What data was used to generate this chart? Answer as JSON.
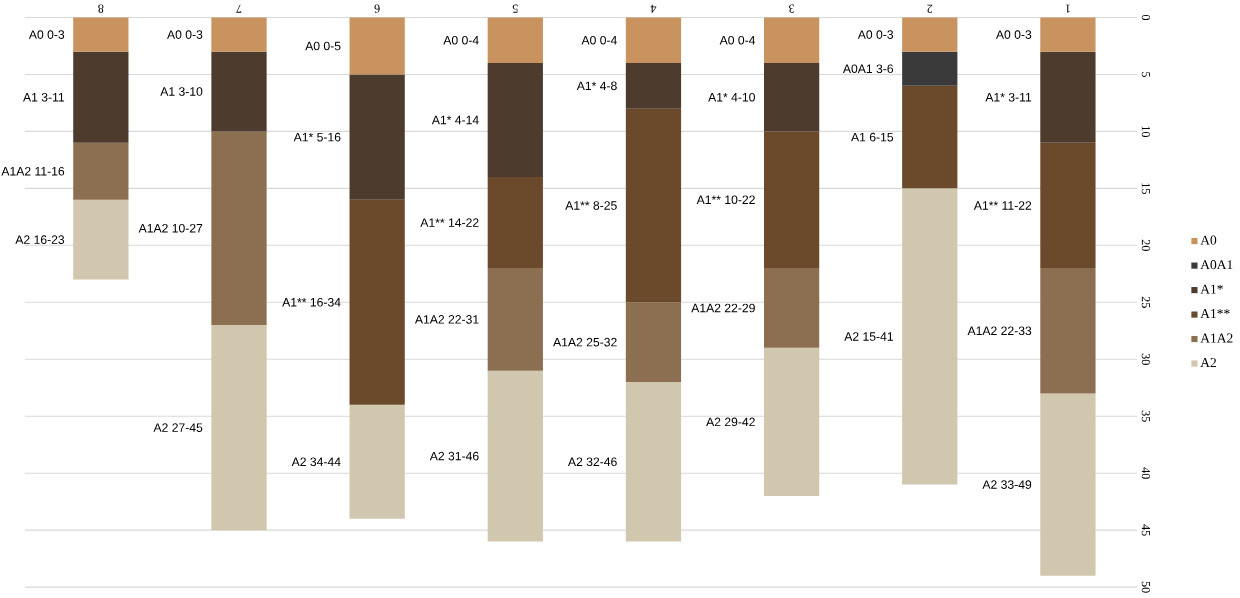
{
  "chart_data": {
    "type": "bar",
    "stacked": true,
    "categories": [
      "8",
      "7",
      "6",
      "5",
      "4",
      "3",
      "2",
      "1"
    ],
    "series": [
      {
        "name": "A0",
        "color": "#c8935e",
        "values": [
          3,
          3,
          5,
          4,
          4,
          4,
          3,
          3
        ]
      },
      {
        "name": "A0A1",
        "color": "#3a3a3a",
        "values": [
          null,
          null,
          null,
          null,
          null,
          null,
          3,
          null
        ]
      },
      {
        "name": "A1*",
        "color": "#4d3b2d",
        "values": [
          8,
          7,
          11,
          10,
          4,
          6,
          null,
          8
        ]
      },
      {
        "name": "A1**",
        "color": "#6b4a2c",
        "values": [
          null,
          null,
          18,
          8,
          17,
          12,
          9,
          11
        ]
      },
      {
        "name": "A1A2",
        "color": "#8c6e50",
        "values": [
          5,
          17,
          null,
          9,
          7,
          7,
          null,
          11
        ]
      },
      {
        "name": "A2",
        "color": "#d1c6ae",
        "values": [
          7,
          18,
          10,
          15,
          14,
          13,
          26,
          16
        ]
      }
    ],
    "ylim": [
      50,
      0
    ],
    "yticks": [
      0,
      5,
      10,
      15,
      20,
      25,
      30,
      35,
      40,
      45,
      50
    ],
    "grid": "y",
    "legend": "right",
    "annotations": [
      "A0 0-3",
      "A1 3-11",
      "A1A2 11-16",
      "A2 16-23",
      "A0 0-3",
      "A1 3-10",
      "A1A2 10-27",
      "A2 27-45",
      "A0  0-5",
      "A1* 5-16",
      "A1** 16-34",
      "A2 34-44",
      "A0 0-4",
      "A1* 4-14",
      "A1**  14-22",
      "A1A2 22-31",
      "A2 31-46",
      "A0 0-4",
      "A1* 4-8",
      "A1** 8-25",
      "A1A2 25-32",
      "A2 32-46",
      "A0 0-4",
      "A1* 4-10",
      "A1** 10-22",
      "A1A2  22-29",
      "A2 29-42",
      "A0 0-3",
      "A0A1 3-6",
      "A1 6-15",
      "A2 15-41",
      "A0 0-3",
      "A1* 3-11",
      "A1** 11-22",
      "A1A2 22-33",
      "A2 33-49"
    ]
  }
}
